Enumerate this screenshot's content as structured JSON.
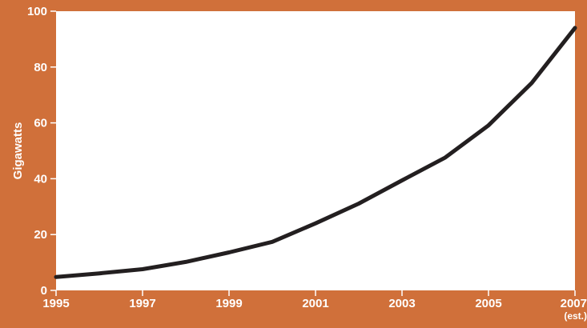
{
  "colors": {
    "frame": "#D0703A",
    "plot_background": "#FFFFFF",
    "line": "#231F20",
    "text": "#FFFFFF"
  },
  "chart_data": {
    "type": "line",
    "title": "",
    "xlabel": "",
    "ylabel": "Gigawatts",
    "xlim": [
      1995,
      2007
    ],
    "ylim": [
      0,
      100
    ],
    "grid": false,
    "x_ticks": [
      {
        "value": 1995,
        "label": "1995",
        "sub": ""
      },
      {
        "value": 1997,
        "label": "1997",
        "sub": ""
      },
      {
        "value": 1999,
        "label": "1999",
        "sub": ""
      },
      {
        "value": 2001,
        "label": "2001",
        "sub": ""
      },
      {
        "value": 2003,
        "label": "2003",
        "sub": ""
      },
      {
        "value": 2005,
        "label": "2005",
        "sub": ""
      },
      {
        "value": 2007,
        "label": "2007",
        "sub": "(est.)"
      }
    ],
    "y_ticks": [
      {
        "value": 0,
        "label": "0"
      },
      {
        "value": 20,
        "label": "20"
      },
      {
        "value": 40,
        "label": "40"
      },
      {
        "value": 60,
        "label": "60"
      },
      {
        "value": 80,
        "label": "80"
      },
      {
        "value": 100,
        "label": "100"
      }
    ],
    "series": [
      {
        "x": [
          1995,
          1996,
          1997,
          1998,
          1999,
          2000,
          2001,
          2002,
          2003,
          2004,
          2005,
          2006,
          2007
        ],
        "y": [
          4.8,
          6.1,
          7.6,
          10.2,
          13.6,
          17.4,
          24.0,
          31.1,
          39.4,
          47.6,
          59.1,
          74.3,
          94.0
        ]
      }
    ]
  }
}
